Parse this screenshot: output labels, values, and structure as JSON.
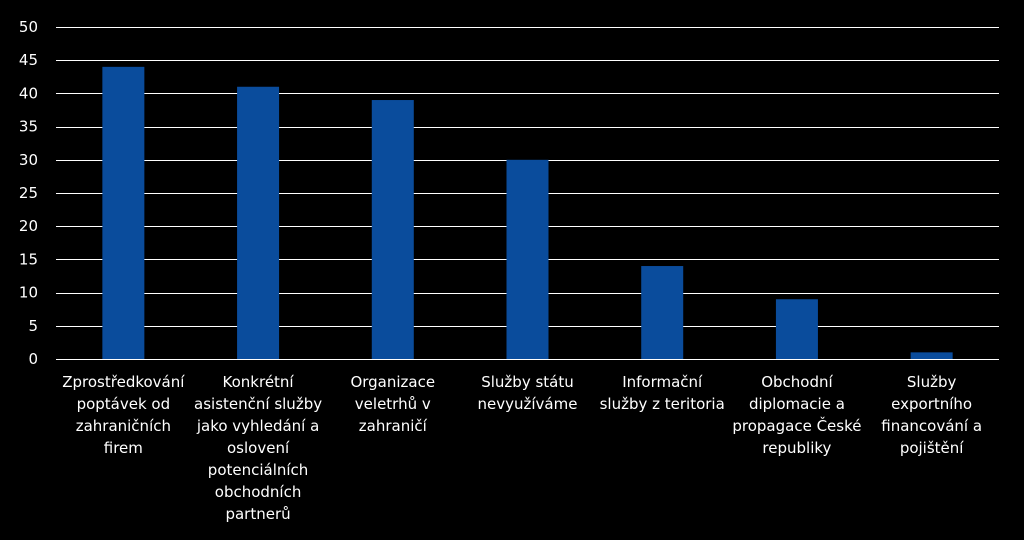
{
  "chart_data": {
    "type": "bar",
    "categories": [
      "Zprostředkování poptávek od zahraničních firem",
      "Konkrétní asistenční služby jako vyhledání a oslovení potenciálních obchodních partnerů",
      "Organizace veletrhů v zahraničí",
      "Služby státu nevyužíváme",
      "Informační služby z teritoria",
      "Obchodní diplomacie a propagace České republiky",
      "Služby exportního financování a pojištění"
    ],
    "values": [
      44,
      41,
      39,
      30,
      14,
      9,
      1
    ],
    "ylim": [
      0,
      50
    ],
    "yticks": [
      0,
      5,
      10,
      15,
      20,
      25,
      30,
      35,
      40,
      45,
      50
    ],
    "grid": true,
    "legend": "none",
    "colors": {
      "bar": "#0a4c9c",
      "background": "#000000",
      "grid": "#ffffff",
      "text": "#ffffff"
    }
  }
}
